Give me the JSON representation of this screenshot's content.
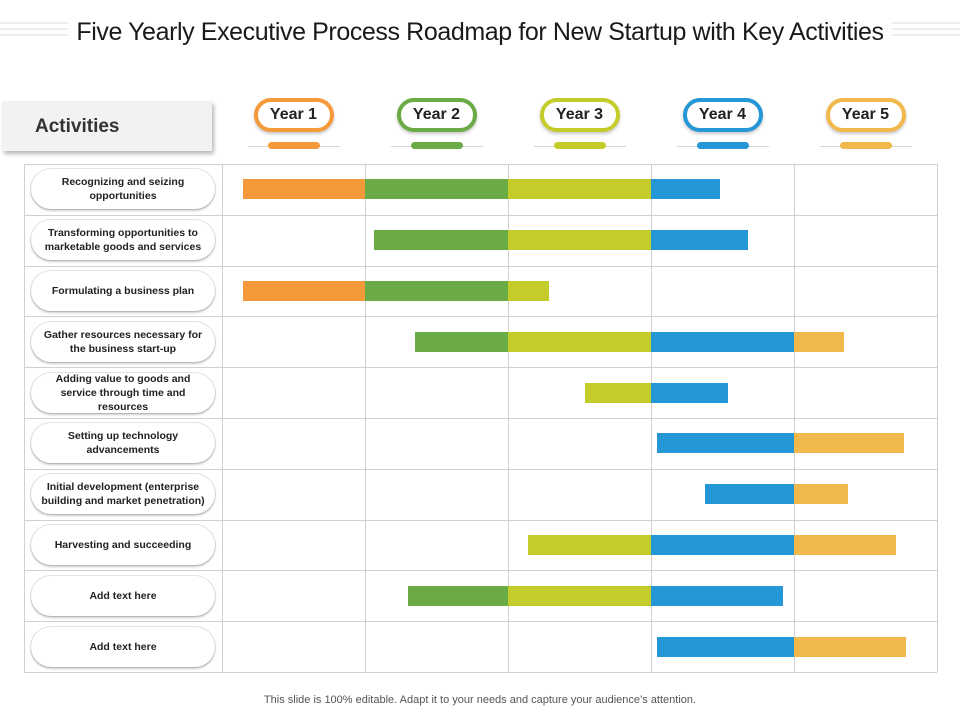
{
  "title": "Five Yearly Executive Process Roadmap for New Startup with Key Activities",
  "activities_label": "Activities",
  "years": [
    {
      "label": "Year 1",
      "color": "#f59a3b"
    },
    {
      "label": "Year 2",
      "color": "#6aab45"
    },
    {
      "label": "Year 3",
      "color": "#c4cc2c"
    },
    {
      "label": "Year 4",
      "color": "#2697d6"
    },
    {
      "label": "Year 5",
      "color": "#f1b94b"
    }
  ],
  "activities": [
    {
      "label": "Recognizing and seizing opportunities",
      "start": 0.15,
      "end": 3.48
    },
    {
      "label": "Transforming opportunities to marketable goods and services",
      "start": 1.06,
      "end": 3.68
    },
    {
      "label": "Formulating a business plan",
      "start": 0.15,
      "end": 2.29
    },
    {
      "label": "Gather resources necessary for the business start-up",
      "start": 1.35,
      "end": 4.35
    },
    {
      "label": "Adding value to goods and service through time and resources",
      "start": 2.54,
      "end": 3.54
    },
    {
      "label": "Setting up technology advancements",
      "start": 3.04,
      "end": 4.77
    },
    {
      "label": "Initial development (enterprise building and market penetration)",
      "start": 3.38,
      "end": 4.38
    },
    {
      "label": "Harvesting and succeeding",
      "start": 2.14,
      "end": 4.71
    },
    {
      "label": "Add text here",
      "start": 1.3,
      "end": 3.92
    },
    {
      "label": "Add text here",
      "start": 3.04,
      "end": 4.78
    }
  ],
  "footer": "This slide is 100% editable. Adapt it to your needs and capture your audience’s attention."
}
